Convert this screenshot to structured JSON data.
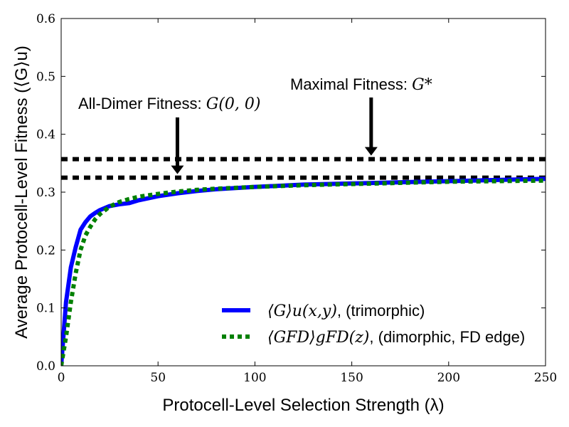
{
  "chart_data": {
    "type": "line",
    "xlabel": "Protocell-Level Selection Strength (λ)",
    "ylabel": "Average Protocell-Level Fitness (⟨G⟩u)",
    "xlim": [
      0,
      250
    ],
    "ylim": [
      0.0,
      0.6
    ],
    "x_ticks": [
      "0",
      "50",
      "100",
      "150",
      "200",
      "250"
    ],
    "y_ticks": [
      "0.0",
      "0.1",
      "0.2",
      "0.3",
      "0.4",
      "0.5",
      "0.6"
    ],
    "grid": false,
    "legend_position": "lower-right",
    "series": [
      {
        "name": "⟨G⟩u(x,y), (trimorphic)",
        "color": "#0000ff",
        "style": "solid",
        "x": [
          0,
          2.5,
          5,
          7.5,
          10,
          12.5,
          15,
          17.5,
          20,
          25,
          30,
          35,
          40,
          50,
          60,
          70,
          80,
          100,
          125,
          150,
          175,
          200,
          225,
          250
        ],
        "y": [
          0.0,
          0.11,
          0.17,
          0.205,
          0.235,
          0.248,
          0.258,
          0.264,
          0.269,
          0.276,
          0.279,
          0.281,
          0.286,
          0.293,
          0.298,
          0.302,
          0.305,
          0.309,
          0.313,
          0.315,
          0.317,
          0.319,
          0.321,
          0.323
        ]
      },
      {
        "name": "⟨GFD⟩gFD(z), (dimorphic, FD edge)",
        "color": "#008000",
        "style": "dotted",
        "x": [
          0,
          2.5,
          5,
          7.5,
          10,
          12.5,
          15,
          17.5,
          20,
          25,
          30,
          35,
          40,
          50,
          60,
          70,
          80,
          100,
          125,
          150,
          175,
          200,
          225,
          250
        ],
        "y": [
          0.0,
          0.05,
          0.11,
          0.16,
          0.2,
          0.225,
          0.24,
          0.253,
          0.262,
          0.275,
          0.283,
          0.288,
          0.292,
          0.297,
          0.301,
          0.304,
          0.306,
          0.309,
          0.312,
          0.314,
          0.316,
          0.318,
          0.319,
          0.32
        ]
      }
    ],
    "reference_lines": [
      {
        "y": 0.357,
        "color": "#000000",
        "style": "dashed",
        "label": "Maximal Fitness: G*"
      },
      {
        "y": 0.325,
        "color": "#000000",
        "style": "dashed",
        "label": "All-Dimer Fitness: G(0, 0)"
      }
    ],
    "annotations": [
      {
        "text_prefix": "Maximal Fitness: ",
        "math": "G*",
        "arrow_x": 160,
        "arrow_to_y": 0.357
      },
      {
        "text_prefix": "All-Dimer Fitness: ",
        "math": "G(0, 0)",
        "arrow_x": 60,
        "arrow_to_y": 0.325
      }
    ],
    "legend": [
      {
        "math": "⟨G⟩u(x,y)",
        "suffix": ", (trimorphic)"
      },
      {
        "math": "⟨GFD⟩gFD(z)",
        "suffix": ", (dimorphic, FD edge)"
      }
    ]
  }
}
